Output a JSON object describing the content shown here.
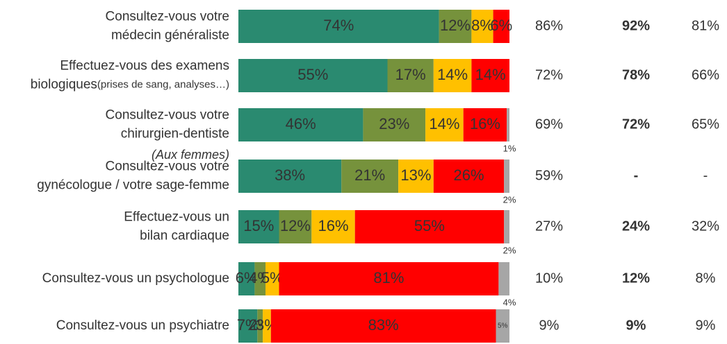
{
  "chart_data": {
    "type": "stacked_bar_h",
    "categories": [
      [
        "Consultez-vous votre",
        "médecin généraliste"
      ],
      [
        "Effectuez-vous des examens",
        [
          "biologiques",
          "(prises de sang, analyses…)"
        ]
      ],
      [
        "Consultez-vous votre",
        "chirurgien-dentiste"
      ],
      [
        "Consultez-vous votre",
        "gynécologue / votre sage-femme"
      ],
      [
        "Effectuez-vous un",
        "bilan cardiaque"
      ],
      [
        "Consultez-vous un psychologue"
      ],
      [
        "Consultez-vous un psychiatre"
      ]
    ],
    "category_notes": [
      null,
      null,
      null,
      "(Aux femmes)",
      null,
      null,
      null
    ],
    "xlim": [
      0,
      100
    ],
    "series": [
      {
        "color": "#2a8a70",
        "values": [
          74,
          55,
          46,
          38,
          15,
          6,
          7
        ],
        "value_labels": [
          "74%",
          "55%",
          "46%",
          "38%",
          "15%",
          "6%",
          "7%"
        ]
      },
      {
        "color": "#76923c",
        "values": [
          12,
          17,
          23,
          21,
          12,
          4,
          2
        ],
        "value_labels": [
          "12%",
          "17%",
          "23%",
          "21%",
          "12%",
          "4%",
          "2%"
        ]
      },
      {
        "color": "#ffc000",
        "values": [
          8,
          14,
          14,
          13,
          16,
          5,
          3
        ],
        "value_labels": [
          "8%",
          "14%",
          "14%",
          "13%",
          "16%",
          "5%",
          "3%"
        ]
      },
      {
        "color": "#ff0000",
        "values": [
          6,
          14,
          16,
          26,
          55,
          81,
          83
        ],
        "value_labels": [
          "6%",
          "14%",
          "16%",
          "26%",
          "55%",
          "81%",
          "83%"
        ]
      },
      {
        "color": "#a6a6a6",
        "values": [
          null,
          null,
          1,
          2,
          2,
          4,
          5
        ],
        "value_labels": [
          null,
          null,
          "1%",
          "2%",
          "2%",
          "4%",
          "5%"
        ]
      }
    ],
    "extra_columns": [
      {
        "bold": false,
        "values": [
          "86%",
          "72%",
          "69%",
          "59%",
          "27%",
          "10%",
          "9%"
        ]
      },
      {
        "bold": true,
        "values": [
          "92%",
          "78%",
          "72%",
          "-",
          "24%",
          "12%",
          "9%"
        ]
      },
      {
        "bold": false,
        "values": [
          "81%",
          "66%",
          "65%",
          "-",
          "32%",
          "8%",
          "9%"
        ]
      }
    ]
  }
}
